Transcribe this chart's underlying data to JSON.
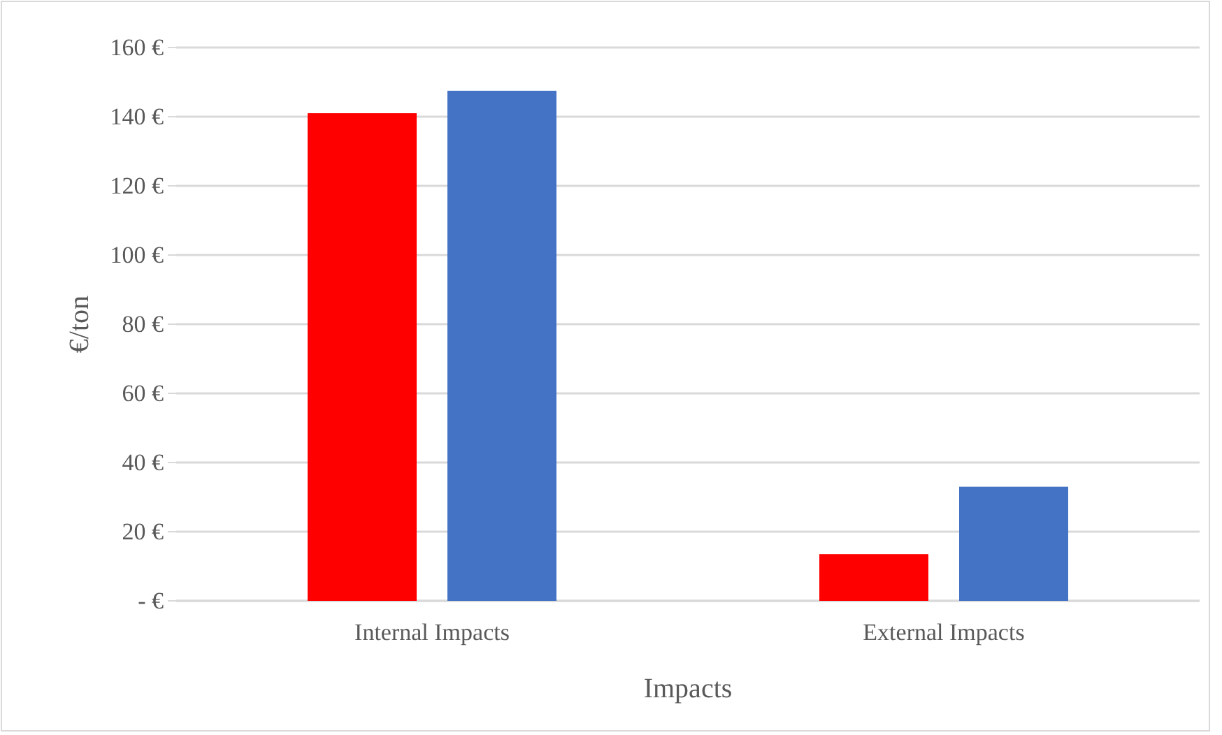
{
  "chart_data": {
    "type": "bar",
    "xlabel": "Impacts",
    "ylabel": "€/ton",
    "categories": [
      "Internal Impacts",
      "External Impacts"
    ],
    "series": [
      {
        "color": "#ff0000",
        "values": [
          141,
          13.5
        ]
      },
      {
        "color": "#4472c4",
        "values": [
          147.5,
          33
        ]
      }
    ],
    "ylim": [
      0,
      160
    ],
    "yticks": [
      {
        "value": 0,
        "label": "-  €"
      },
      {
        "value": 20,
        "label": "20 €"
      },
      {
        "value": 40,
        "label": "40 €"
      },
      {
        "value": 60,
        "label": "60 €"
      },
      {
        "value": 80,
        "label": "80 €"
      },
      {
        "value": 100,
        "label": "100 €"
      },
      {
        "value": 120,
        "label": "120 €"
      },
      {
        "value": 140,
        "label": "140 €"
      },
      {
        "value": 160,
        "label": "160 €"
      }
    ],
    "grid": "y"
  }
}
